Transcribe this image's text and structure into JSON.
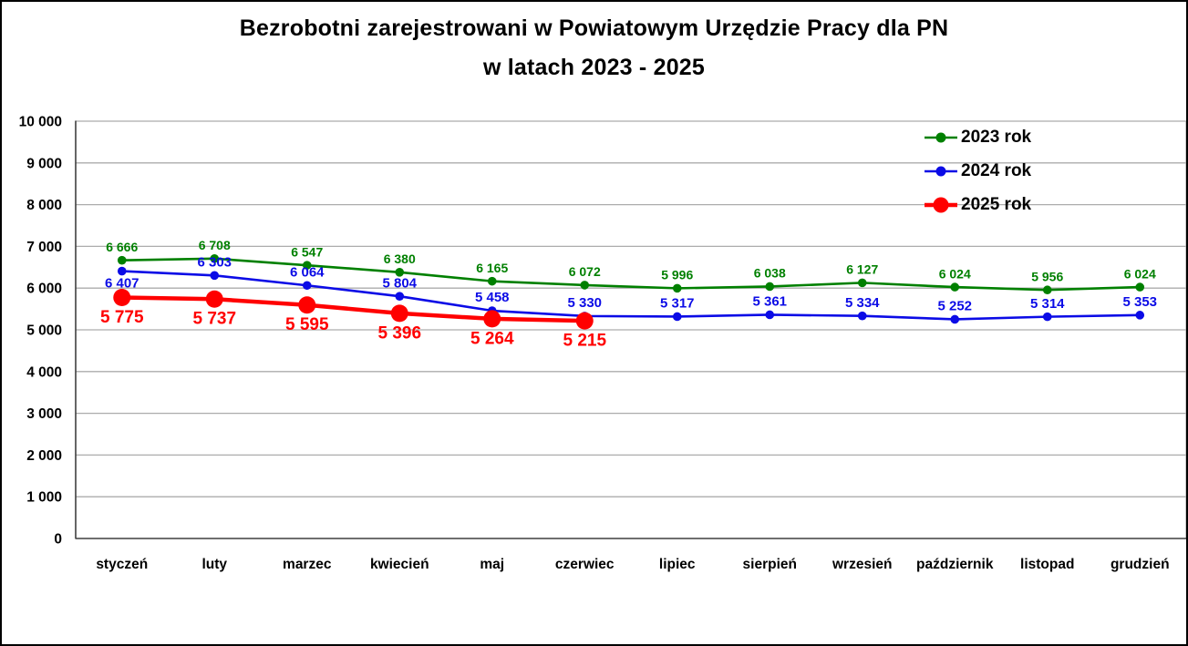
{
  "window": {
    "background": "#ffffff",
    "border_color": "#000000"
  },
  "title": {
    "line1": "Bezrobotni zarejestrowani w Powiatowym Urzędzie Pracy dla PN",
    "line2": "w latach 2023 - 2025"
  },
  "chart_data": {
    "type": "line",
    "title": "Bezrobotni zarejestrowani w Powiatowym Urzędzie Pracy dla PN w latach 2023 - 2025",
    "categories": [
      "styczeń",
      "luty",
      "marzec",
      "kwiecień",
      "maj",
      "czerwiec",
      "lipiec",
      "sierpień",
      "wrzesień",
      "październik",
      "listopad",
      "grudzień"
    ],
    "series": [
      {
        "name": "2023 rok",
        "color": "#008000",
        "values": [
          6666,
          6708,
          6547,
          6380,
          6165,
          6072,
          5996,
          6038,
          6127,
          6024,
          5956,
          6024
        ],
        "data_labels": "above",
        "emphasis": false
      },
      {
        "name": "2024 rok",
        "color": "#0B0BE6",
        "values": [
          6407,
          6303,
          6064,
          5804,
          5458,
          5330,
          5317,
          5361,
          5334,
          5252,
          5314,
          5353
        ],
        "data_labels": "above",
        "first_label_below": true,
        "emphasis": false
      },
      {
        "name": "2025 rok",
        "color": "#FF0000",
        "values": [
          5775,
          5737,
          5595,
          5396,
          5264,
          5215,
          null,
          null,
          null,
          null,
          null,
          null
        ],
        "data_labels": "below",
        "emphasis": true
      }
    ],
    "xlabel": "",
    "ylabel": "",
    "ylim": [
      0,
      10000
    ],
    "ytick_step": 1000,
    "ytick_labels": [
      "0",
      "1 000",
      "2 000",
      "3 000",
      "4 000",
      "5 000",
      "6 000",
      "7 000",
      "8 000",
      "9 000",
      "10 000"
    ],
    "grid": true,
    "gridline_color": "#ACACAC",
    "axis_color": "#3F3F3F",
    "legend_position": "top-right"
  }
}
